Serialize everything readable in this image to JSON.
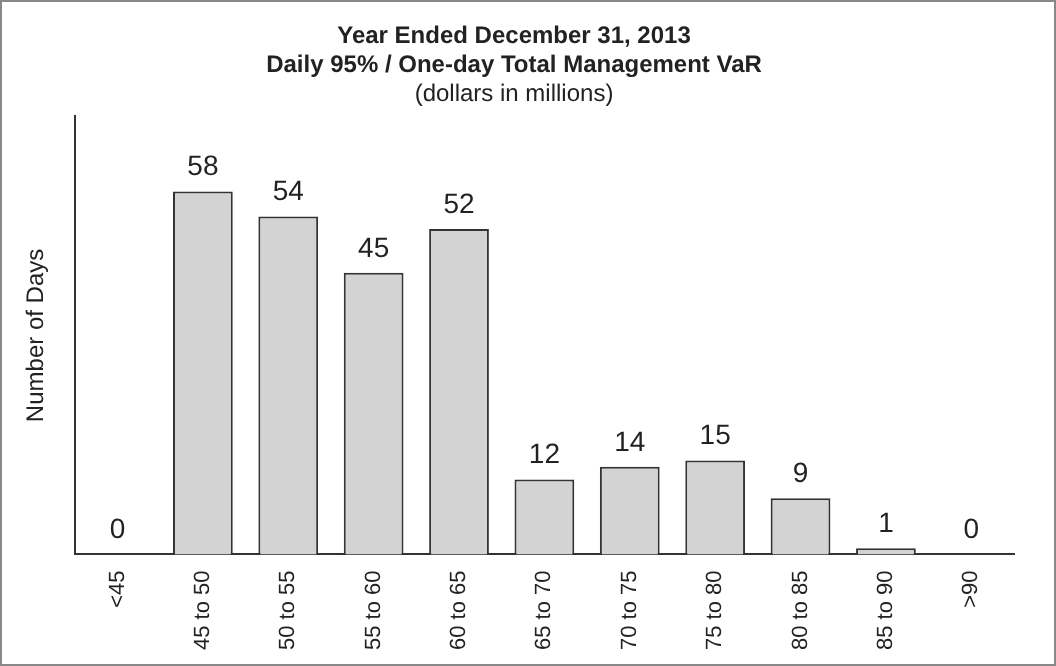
{
  "chart_data": {
    "type": "bar",
    "title": [
      "Year Ended December 31, 2013",
      "Daily 95% / One-day Total Management VaR"
    ],
    "subtitle": "(dollars in millions)",
    "ylabel": "Number of Days",
    "categories": [
      "<45",
      "45 to 50",
      "50 to 55",
      "55 to 60",
      "60 to 65",
      "65 to 70",
      "70 to 75",
      "75 to 80",
      "80 to 85",
      "85 to 90",
      ">90"
    ],
    "values": [
      0,
      58,
      54,
      45,
      52,
      12,
      14,
      15,
      9,
      1,
      0
    ],
    "color": "#d3d3d3",
    "data_labels": true,
    "grid": false,
    "legend": false,
    "tick_labels": "x"
  }
}
